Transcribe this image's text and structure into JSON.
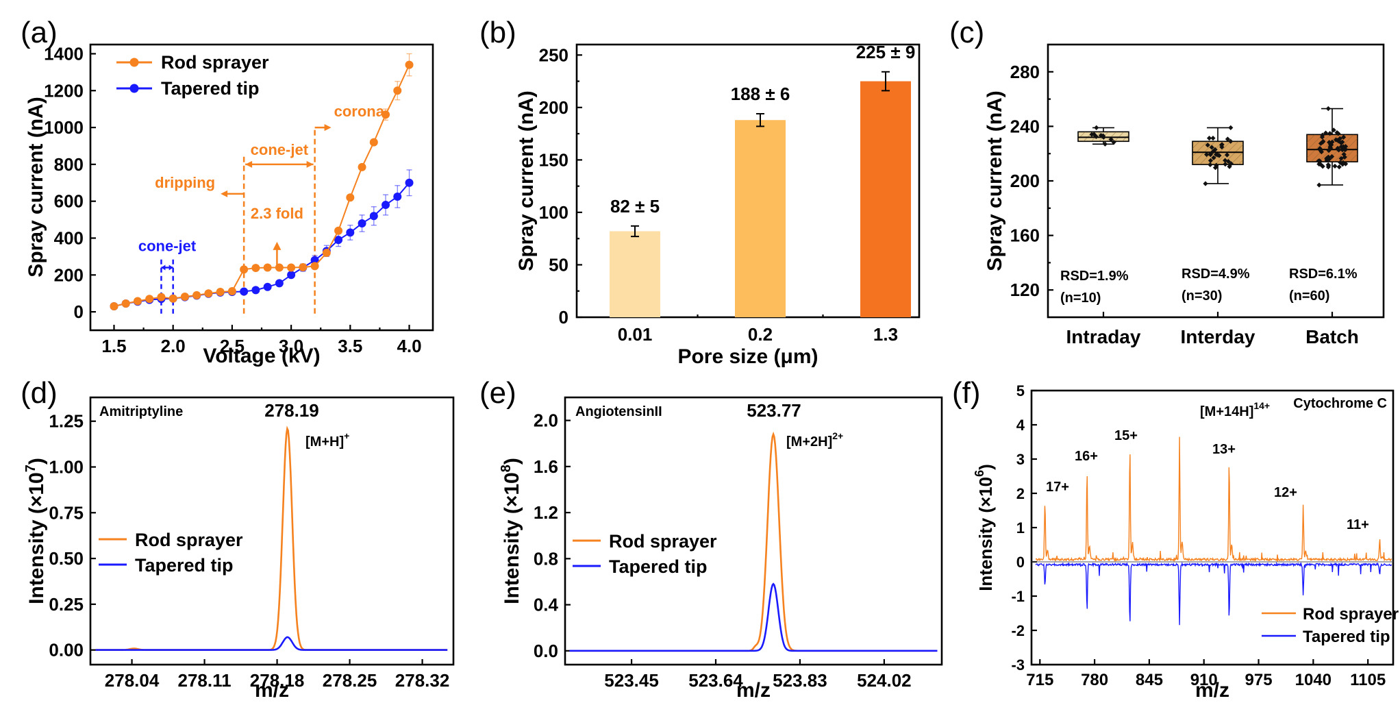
{
  "colors": {
    "rod": "#f5821f",
    "tapered": "#1a1aff",
    "bar_light": "#fddfa6",
    "bar_mid": "#fdbd5d",
    "bar_dark": "#f37321",
    "box_light": "#ead6a2",
    "box_mid": "#d7a864",
    "box_dark": "#cf7a3c"
  },
  "panels": {
    "a": {
      "letter": "(a)",
      "xlabel": "Voltage (kV)",
      "ylabel": "Spray current (nA)",
      "xticks": [
        "1.5",
        "2.0",
        "2.5",
        "3.0",
        "3.5",
        "4.0"
      ],
      "yticks": [
        "0",
        "200",
        "400",
        "600",
        "800",
        "1000",
        "1200",
        "1400"
      ],
      "legend": [
        "Rod sprayer",
        "Tapered tip"
      ],
      "annotations": {
        "corona": "corona",
        "conejet_orange": "cone-jet",
        "dripping": "dripping",
        "fold": "2.3 fold",
        "conejet_blue": "cone-jet"
      }
    },
    "b": {
      "letter": "(b)",
      "xlabel": "Pore size (μm)",
      "ylabel": "Spray current (nA)",
      "yticks": [
        "0",
        "50",
        "100",
        "150",
        "200",
        "250"
      ],
      "value_labels": [
        "82 ± 5",
        "188 ± 6",
        "225 ± 9"
      ]
    },
    "c": {
      "letter": "(c)",
      "ylabel": "Spray current (nA)",
      "yticks": [
        "120",
        "160",
        "200",
        "240",
        "280"
      ],
      "rsd": [
        "RSD=1.9%",
        "RSD=4.9%",
        "RSD=6.1%"
      ],
      "n": [
        "(n=10)",
        "(n=30)",
        "(n=60)"
      ]
    },
    "d": {
      "letter": "(d)",
      "xlabel": "m/z",
      "ylabel_main": "Intensity (×10",
      "ylabel_exp": "7",
      "ylabel_end": ")",
      "compound": "Amitriptyline",
      "peak_label": "278.19",
      "ion_main": "[M+H]",
      "ion_sup": "+",
      "xticks": [
        "278.04",
        "278.11",
        "278.18",
        "278.25",
        "278.32"
      ],
      "yticks": [
        "0.00",
        "0.25",
        "0.50",
        "0.75",
        "1.00",
        "1.25"
      ],
      "legend": [
        "Rod sprayer",
        "Tapered tip"
      ]
    },
    "e": {
      "letter": "(e)",
      "xlabel": "m/z",
      "ylabel_main": "Intensity (×10",
      "ylabel_exp": "8",
      "ylabel_end": ")",
      "compound": "AngiotensinII",
      "peak_label": "523.77",
      "ion_main": "[M+2H]",
      "ion_sup": "2+",
      "xticks": [
        "523.45",
        "523.64",
        "523.83",
        "524.02"
      ],
      "yticks": [
        "0.0",
        "0.4",
        "0.8",
        "1.2",
        "1.6",
        "2.0"
      ],
      "legend": [
        "Rod sprayer",
        "Tapered tip"
      ]
    },
    "f": {
      "letter": "(f)",
      "xlabel": "m/z",
      "ylabel_main": "Intensity (×10",
      "ylabel_exp": "6",
      "ylabel_end": ")",
      "compound": "Cytochrome C",
      "ion_main": "[M+14H]",
      "ion_sup": "14+",
      "charge_labels": [
        "17+",
        "16+",
        "15+",
        "13+",
        "12+",
        "11+"
      ],
      "xticks": [
        "715",
        "780",
        "845",
        "910",
        "975",
        "1040",
        "1105"
      ],
      "yticks": [
        "-3",
        "-2",
        "-1",
        "0",
        "1",
        "2",
        "3",
        "4",
        "5"
      ],
      "legend": [
        "Rod sprayer",
        "Tapered tip"
      ]
    }
  },
  "chart_data": [
    {
      "type": "line",
      "panel": "a",
      "x_range": [
        1.3,
        4.2
      ],
      "y_range": [
        -100,
        1450
      ],
      "series": [
        {
          "name": "Rod sprayer",
          "x": [
            1.5,
            1.6,
            1.7,
            1.8,
            1.9,
            2.0,
            2.1,
            2.2,
            2.3,
            2.4,
            2.5,
            2.6,
            2.7,
            2.8,
            2.9,
            3.0,
            3.1,
            3.2,
            3.3,
            3.4,
            3.5,
            3.6,
            3.7,
            3.8,
            3.9,
            4.0
          ],
          "y": [
            30,
            45,
            58,
            70,
            80,
            72,
            82,
            90,
            100,
            108,
            112,
            230,
            238,
            240,
            240,
            240,
            242,
            248,
            320,
            440,
            620,
            785,
            920,
            1070,
            1200,
            1340
          ],
          "err": [
            0,
            0,
            0,
            0,
            0,
            0,
            0,
            0,
            0,
            0,
            0,
            0,
            0,
            0,
            0,
            0,
            0,
            0,
            0,
            0,
            0,
            0,
            0,
            30,
            50,
            60
          ]
        },
        {
          "name": "Tapered tip",
          "x": [
            1.5,
            1.6,
            1.7,
            1.8,
            1.9,
            2.0,
            2.1,
            2.2,
            2.3,
            2.4,
            2.5,
            2.6,
            2.7,
            2.8,
            2.9,
            3.0,
            3.1,
            3.2,
            3.3,
            3.4,
            3.5,
            3.6,
            3.7,
            3.8,
            3.9,
            4.0
          ],
          "y": [
            30,
            45,
            55,
            65,
            70,
            72,
            80,
            88,
            98,
            105,
            108,
            110,
            118,
            135,
            155,
            200,
            240,
            280,
            330,
            390,
            430,
            480,
            520,
            580,
            625,
            700
          ],
          "err": [
            0,
            0,
            0,
            0,
            0,
            0,
            0,
            0,
            0,
            0,
            0,
            0,
            0,
            0,
            10,
            15,
            20,
            25,
            30,
            35,
            40,
            45,
            50,
            55,
            60,
            70
          ]
        }
      ]
    },
    {
      "type": "bar",
      "panel": "b",
      "categories": [
        "0.01",
        "0.2",
        "1.3"
      ],
      "values": [
        82,
        188,
        225
      ],
      "errors": [
        5,
        6,
        9
      ],
      "ylim": [
        0,
        260
      ]
    },
    {
      "type": "box",
      "panel": "c",
      "categories": [
        "Intraday",
        "Interday",
        "Batch"
      ],
      "ylim": [
        100,
        300
      ],
      "boxes": [
        {
          "min": 227,
          "q1": 229,
          "median": 232,
          "q3": 236,
          "max": 239,
          "n": 10
        },
        {
          "min": 198,
          "q1": 212,
          "median": 221,
          "q3": 229,
          "max": 239,
          "n": 30
        },
        {
          "min": 197,
          "q1": 214,
          "median": 223,
          "q3": 234,
          "max": 253,
          "n": 60
        }
      ]
    },
    {
      "type": "line",
      "panel": "d",
      "x_range": [
        278.0,
        278.35
      ],
      "y_range": [
        -0.08,
        1.38
      ],
      "series": [
        {
          "name": "Rod sprayer",
          "peak_center": 278.19,
          "peak_height": 1.21,
          "width": 0.0045
        },
        {
          "name": "Tapered tip",
          "peak_center": 278.19,
          "peak_height": 0.07,
          "width": 0.0045
        }
      ]
    },
    {
      "type": "line",
      "panel": "e",
      "x_range": [
        523.3,
        524.15
      ],
      "y_range": [
        -0.12,
        2.2
      ],
      "series": [
        {
          "name": "Rod sprayer",
          "peak_center": 523.77,
          "peak_height": 1.88,
          "width": 0.013
        },
        {
          "name": "Tapered tip",
          "peak_center": 523.77,
          "peak_height": 0.58,
          "width": 0.011
        }
      ]
    },
    {
      "type": "line",
      "panel": "f",
      "x_range": [
        705,
        1135
      ],
      "y_range": [
        -3,
        5
      ],
      "series": [
        {
          "name": "Rod sprayer",
          "peaks": [
            [
              721,
              1.7
            ],
            [
              771,
              2.6
            ],
            [
              822,
              3.3
            ],
            [
              881,
              3.6
            ],
            [
              940,
              2.9
            ],
            [
              1028,
              1.6
            ],
            [
              1119,
              0.6
            ]
          ]
        },
        {
          "name": "Tapered tip",
          "peaks": [
            [
              721,
              -0.6
            ],
            [
              771,
              -1.35
            ],
            [
              822,
              -1.75
            ],
            [
              881,
              -1.75
            ],
            [
              940,
              -1.6
            ],
            [
              1028,
              -0.9
            ],
            [
              1119,
              -0.3
            ]
          ]
        }
      ]
    }
  ]
}
